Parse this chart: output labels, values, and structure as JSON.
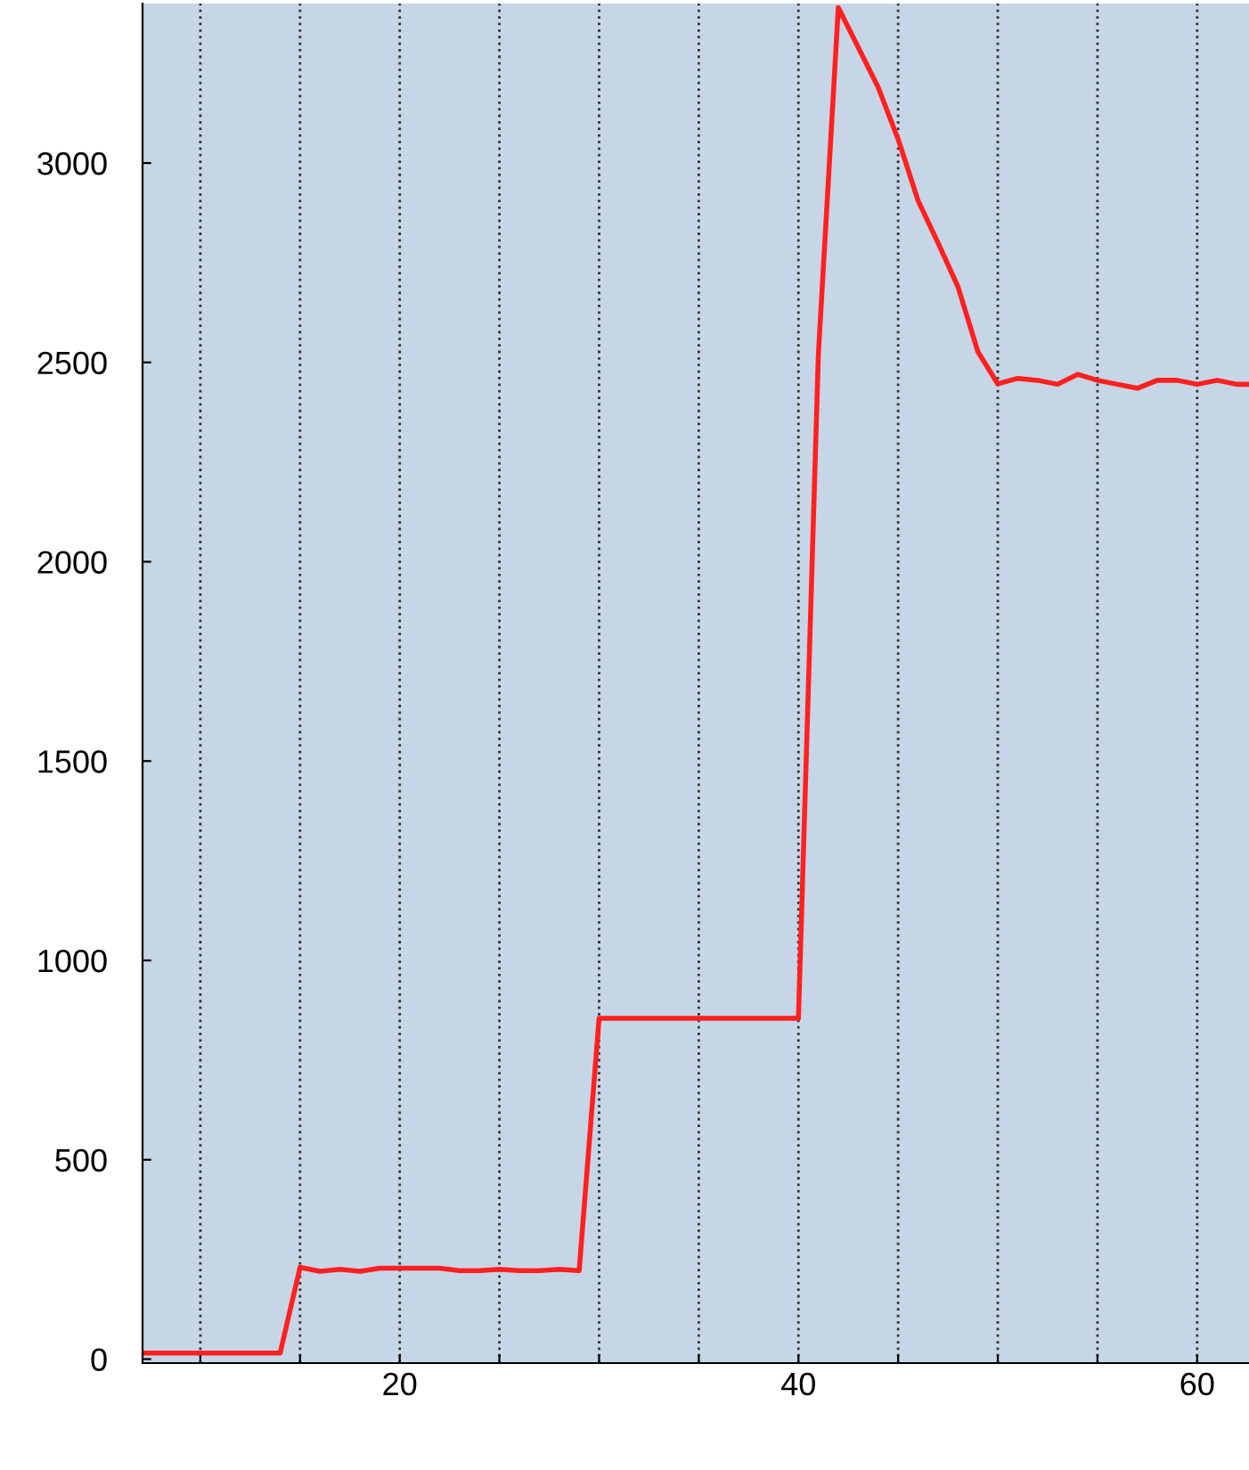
{
  "chart_data": {
    "type": "line",
    "xlim": [
      7.1,
      62.6
    ],
    "ylim": [
      -10,
      3400
    ],
    "xticks": [
      {
        "value": 10,
        "label": null
      },
      {
        "value": 15,
        "label": null
      },
      20,
      {
        "value": 25,
        "label": null
      },
      {
        "value": 30,
        "label": null
      },
      {
        "value": 35,
        "label": null
      },
      40,
      {
        "value": 45,
        "label": null
      },
      {
        "value": 50,
        "label": null
      },
      {
        "value": 55,
        "label": null
      },
      60
    ],
    "yticks": [
      0,
      500,
      1000,
      1500,
      2000,
      2500,
      3000
    ],
    "grid": "x",
    "marker": "none",
    "line_style": "solid",
    "series": [
      {
        "color": "#ff2020",
        "x": [
          7.1,
          10,
          14,
          15,
          16,
          17,
          18,
          19,
          20,
          22,
          23,
          24,
          25,
          26,
          27,
          28,
          29,
          30,
          35,
          40,
          41,
          42,
          43,
          44,
          45,
          46,
          47,
          48,
          49,
          50,
          51,
          52,
          53,
          54,
          55,
          56,
          57,
          58,
          59,
          60,
          61,
          62,
          62.6
        ],
        "values": [
          15,
          15,
          15,
          230,
          220,
          225,
          220,
          228,
          228,
          228,
          222,
          222,
          225,
          222,
          222,
          225,
          222,
          855,
          855,
          855,
          2520,
          3390,
          3290,
          3190,
          3060,
          2906,
          2800,
          2690,
          2527,
          2446,
          2460,
          2455,
          2445,
          2470,
          2455,
          2445,
          2435,
          2455,
          2455,
          2445,
          2455,
          2445,
          2445
        ]
      }
    ]
  }
}
